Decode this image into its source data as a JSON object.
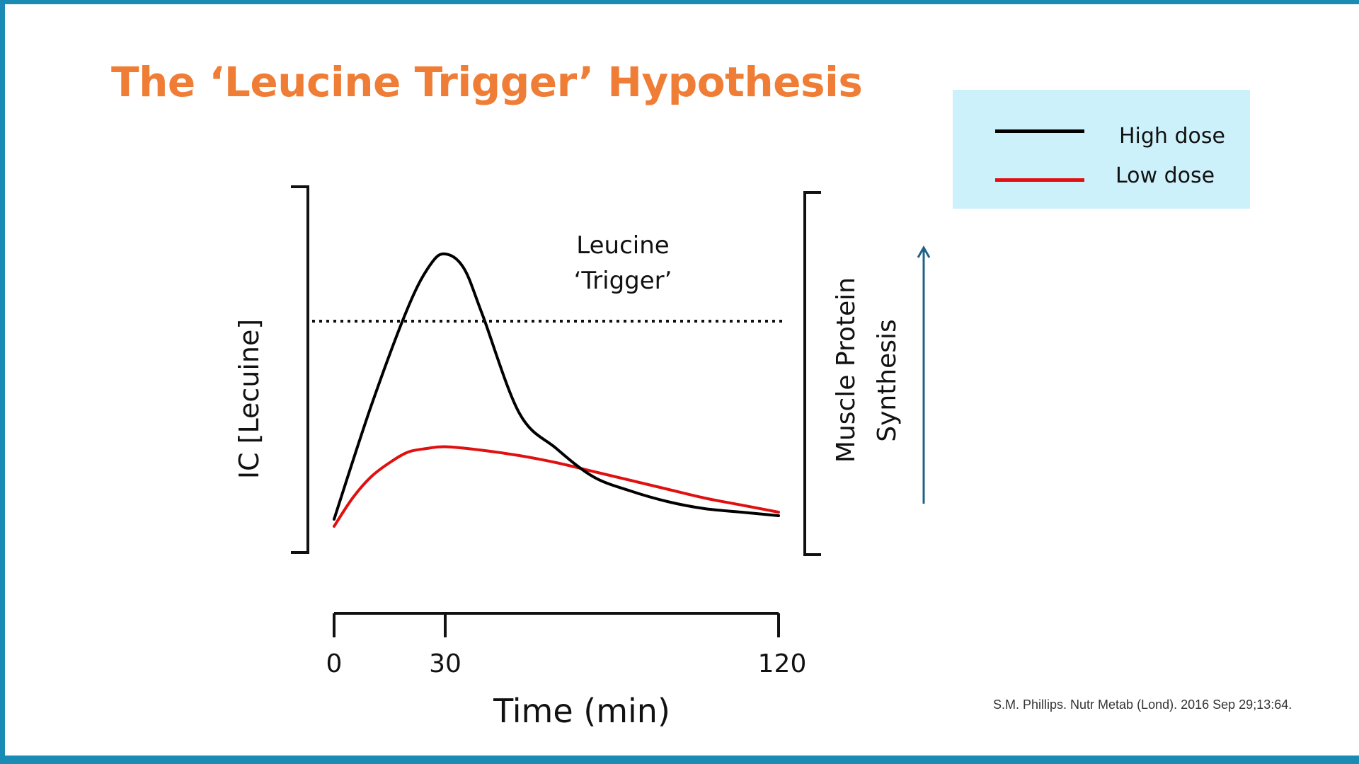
{
  "slide": {
    "title": "The ‘Leucine Trigger’ Hypothesis",
    "citation": "S.M. Phillips. Nutr Metab (Lond). 2016 Sep 29;13:64.",
    "accent_color": "#ef7d35",
    "border_color": "#1a8bb5",
    "legend_bg": "#cdf1fb"
  },
  "chart_data": {
    "type": "line",
    "title": "",
    "xlabel": "Time (min)",
    "ylabel": "IC [Lecuine]",
    "right_axis_label_line1": "Muscle Protein",
    "right_axis_label_line2": "Synthesis",
    "xlim": [
      0,
      120
    ],
    "ylim": [
      0,
      100
    ],
    "x_ticks": [
      0,
      30,
      120
    ],
    "x_tick_labels": [
      "0",
      "30",
      "120"
    ],
    "grid": false,
    "legend_position": "top-right",
    "threshold": {
      "label_line1": "Leucine",
      "label_line2": "‘Trigger’",
      "y": 62,
      "style": "dotted"
    },
    "series": [
      {
        "name": "High dose",
        "color": "#000000",
        "points": [
          [
            0,
            6
          ],
          [
            10,
            38
          ],
          [
            20,
            66
          ],
          [
            26,
            78
          ],
          [
            30,
            81
          ],
          [
            35,
            77
          ],
          [
            40,
            64
          ],
          [
            50,
            36
          ],
          [
            60,
            26
          ],
          [
            70,
            18
          ],
          [
            80,
            14
          ],
          [
            90,
            11
          ],
          [
            100,
            9
          ],
          [
            110,
            8
          ],
          [
            120,
            7
          ]
        ]
      },
      {
        "name": "Low dose",
        "color": "#e01010",
        "points": [
          [
            0,
            4
          ],
          [
            5,
            12
          ],
          [
            10,
            18
          ],
          [
            15,
            22
          ],
          [
            20,
            25
          ],
          [
            25,
            26
          ],
          [
            30,
            26.5
          ],
          [
            40,
            25.5
          ],
          [
            50,
            24
          ],
          [
            60,
            22
          ],
          [
            70,
            19.5
          ],
          [
            80,
            17
          ],
          [
            90,
            14.5
          ],
          [
            100,
            12
          ],
          [
            110,
            10
          ],
          [
            120,
            8
          ]
        ]
      }
    ]
  }
}
